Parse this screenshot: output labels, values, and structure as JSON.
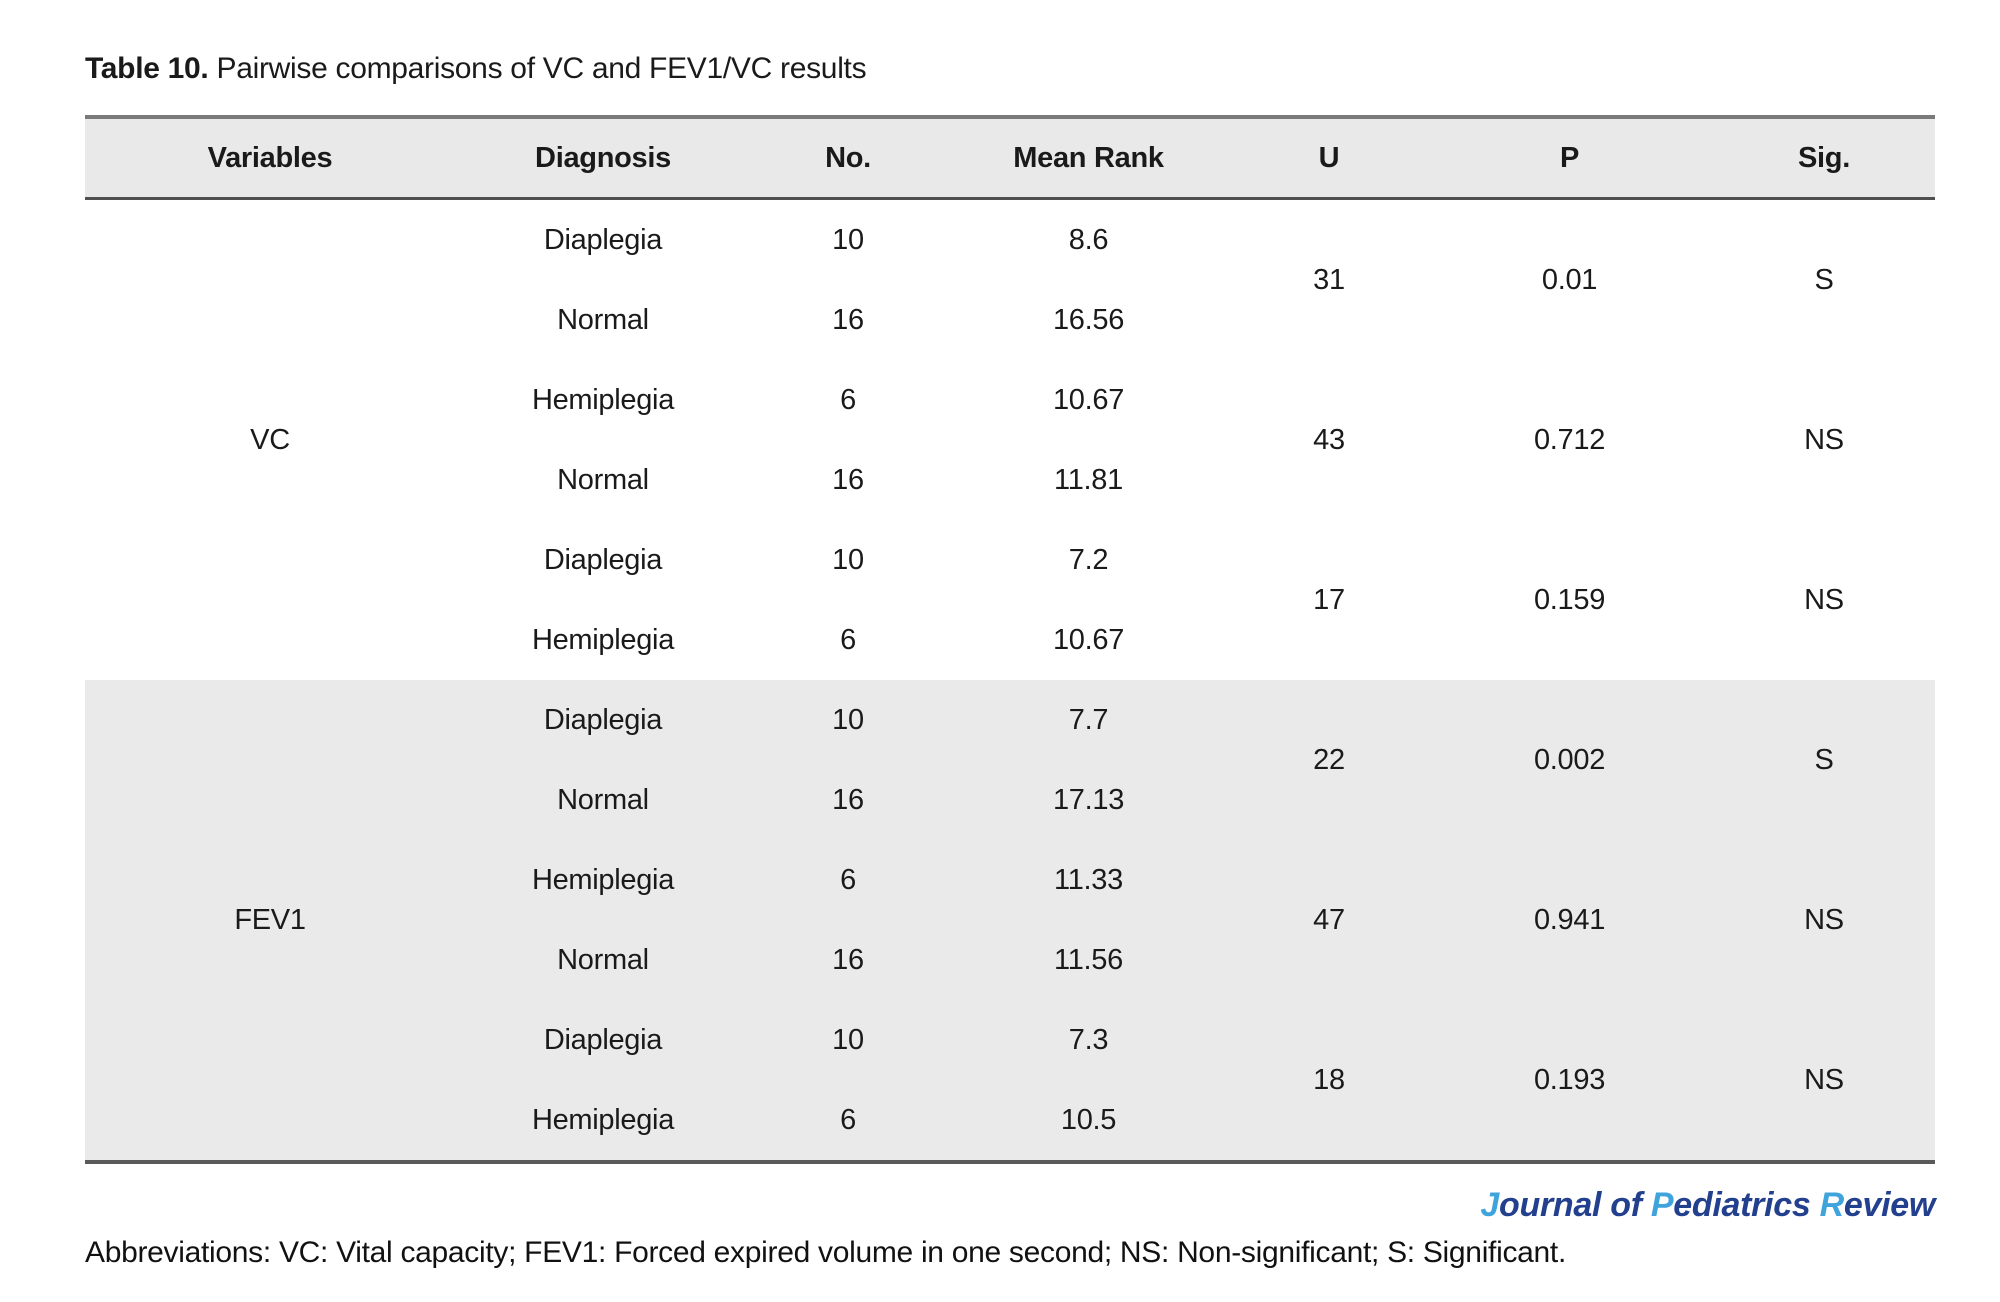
{
  "title": {
    "label": "Table 10.",
    "text": " Pairwise comparisons of VC and FEV1/VC results"
  },
  "table": {
    "headers": [
      "Variables",
      "Diagnosis",
      "No.",
      "Mean Rank",
      "U",
      "P",
      "Sig."
    ],
    "sections": [
      {
        "variable": "VC",
        "rows": [
          {
            "diagnosis": "Diaplegia",
            "no": "10",
            "mean_rank": "8.6"
          },
          {
            "diagnosis": "Normal",
            "no": "16",
            "mean_rank": "16.56"
          },
          {
            "diagnosis": "Hemiplegia",
            "no": "6",
            "mean_rank": "10.67"
          },
          {
            "diagnosis": "Normal",
            "no": "16",
            "mean_rank": "11.81"
          },
          {
            "diagnosis": "Diaplegia",
            "no": "10",
            "mean_rank": "7.2"
          },
          {
            "diagnosis": "Hemiplegia",
            "no": "6",
            "mean_rank": "10.67"
          }
        ],
        "comparisons": [
          {
            "u": "31",
            "p": "0.01",
            "sig": "S"
          },
          {
            "u": "43",
            "p": "0.712",
            "sig": "NS"
          },
          {
            "u": "17",
            "p": "0.159",
            "sig": "NS"
          }
        ]
      },
      {
        "variable": "FEV1",
        "rows": [
          {
            "diagnosis": "Diaplegia",
            "no": "10",
            "mean_rank": "7.7"
          },
          {
            "diagnosis": "Normal",
            "no": "16",
            "mean_rank": "17.13"
          },
          {
            "diagnosis": "Hemiplegia",
            "no": "6",
            "mean_rank": "11.33"
          },
          {
            "diagnosis": "Normal",
            "no": "16",
            "mean_rank": "11.56"
          },
          {
            "diagnosis": "Diaplegia",
            "no": "10",
            "mean_rank": "7.3"
          },
          {
            "diagnosis": "Hemiplegia",
            "no": "6",
            "mean_rank": "10.5"
          }
        ],
        "comparisons": [
          {
            "u": "22",
            "p": "0.002",
            "sig": "S"
          },
          {
            "u": "47",
            "p": "0.941",
            "sig": "NS"
          },
          {
            "u": "18",
            "p": "0.193",
            "sig": "NS"
          }
        ]
      }
    ]
  },
  "footer": {
    "journal": {
      "segments": [
        {
          "text": "J"
        },
        {
          "text": "ournal of "
        },
        {
          "text": "P"
        },
        {
          "text": "ediatrics "
        },
        {
          "text": "R"
        },
        {
          "text": "eview"
        }
      ]
    },
    "abbreviations": "Abbreviations: VC: Vital capacity; FEV1: Forced expired volume in one second; NS: Non-significant; S: Significant."
  },
  "colors": {
    "band_gray": "#eaeaea",
    "border_gray": "#5a5a5a",
    "logo_dark_blue": "#23408e",
    "logo_light_blue": "#3fa3dc"
  }
}
